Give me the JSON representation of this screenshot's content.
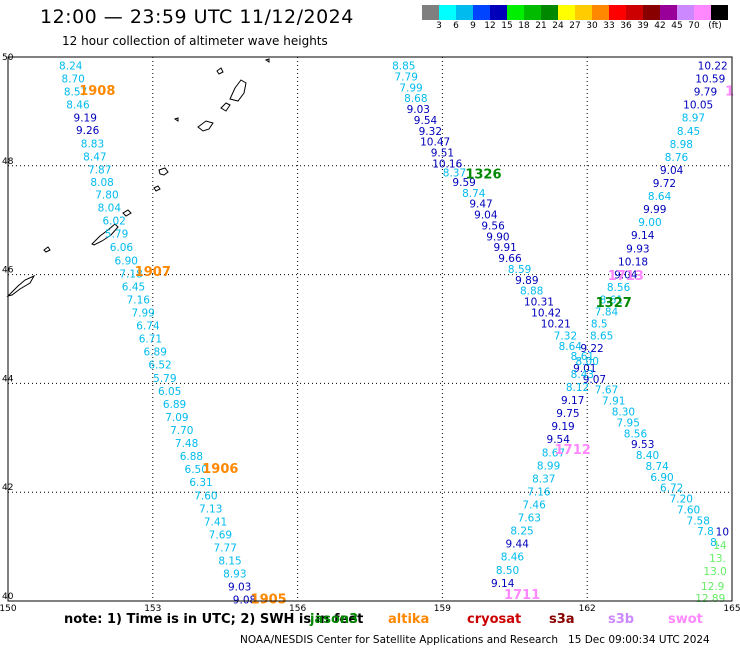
{
  "title": "12:00 — 23:59 UTC 11/12/2024",
  "subtitle": "12 hour collection of altimeter wave heights",
  "legend": {
    "colors": [
      "#7f7f7f",
      "#00ffff",
      "#00bbee",
      "#0044ff",
      "#0000bb",
      "#00ee00",
      "#00bb00",
      "#008800",
      "#ffff00",
      "#ffcc00",
      "#ff8800",
      "#ff0000",
      "#cc0000",
      "#880000",
      "#990099",
      "#cc88ff",
      "#ff88ff",
      "#000000"
    ],
    "ticks": [
      "3",
      "6",
      "9",
      "12",
      "15",
      "18",
      "21",
      "24",
      "27",
      "30",
      "33",
      "36",
      "39",
      "42",
      "45",
      "70",
      "(ft)"
    ]
  },
  "axes": {
    "x_ticks": [
      "150",
      "153",
      "156",
      "159",
      "162",
      "165"
    ],
    "y_ticks": [
      "50",
      "48",
      "46",
      "44",
      "42",
      "40"
    ],
    "xlim": [
      150,
      165
    ],
    "ylim": [
      40,
      50
    ]
  },
  "colors": {
    "cyan_band": "#00bbee",
    "blue_band": "#0000bb",
    "green_band": "#00aa00",
    "orange_band": "#ff8800",
    "pink_band": "#ff88ff",
    "lightgreen_band": "#66ee66"
  },
  "tracks": [
    {
      "name": "track-1908-1905",
      "points": [
        {
          "lon": 151.3,
          "lat": 49.77,
          "v": "8.24",
          "c": "#00bbee"
        },
        {
          "lon": 151.35,
          "lat": 49.53,
          "v": "8.70",
          "c": "#00bbee"
        },
        {
          "lon": 151.4,
          "lat": 49.29,
          "v": "8.57",
          "c": "#00bbee"
        },
        {
          "lon": 151.45,
          "lat": 49.05,
          "v": "8.46",
          "c": "#00bbee"
        },
        {
          "lon": 151.6,
          "lat": 48.81,
          "v": "9.19",
          "c": "#0000bb"
        },
        {
          "lon": 151.65,
          "lat": 48.58,
          "v": "9.26",
          "c": "#0000bb"
        },
        {
          "lon": 151.75,
          "lat": 48.34,
          "v": "8.83",
          "c": "#00bbee"
        },
        {
          "lon": 151.8,
          "lat": 48.1,
          "v": "8.47",
          "c": "#00bbee"
        },
        {
          "lon": 151.9,
          "lat": 47.86,
          "v": "7.87",
          "c": "#00bbee"
        },
        {
          "lon": 151.95,
          "lat": 47.63,
          "v": "8.08",
          "c": "#00bbee"
        },
        {
          "lon": 152.05,
          "lat": 47.4,
          "v": "7.80",
          "c": "#00bbee"
        },
        {
          "lon": 152.1,
          "lat": 47.16,
          "v": "8.04",
          "c": "#00bbee"
        },
        {
          "lon": 152.2,
          "lat": 46.92,
          "v": "6.02",
          "c": "#00bbee"
        },
        {
          "lon": 152.25,
          "lat": 46.68,
          "v": "5.79",
          "c": "#00bbee"
        },
        {
          "lon": 152.35,
          "lat": 46.43,
          "v": "6.06",
          "c": "#00bbee"
        },
        {
          "lon": 152.45,
          "lat": 46.19,
          "v": "6.90",
          "c": "#00bbee"
        },
        {
          "lon": 152.55,
          "lat": 45.95,
          "v": "7.18",
          "c": "#00bbee"
        },
        {
          "lon": 152.6,
          "lat": 45.71,
          "v": "6.45",
          "c": "#00bbee"
        },
        {
          "lon": 152.7,
          "lat": 45.47,
          "v": "7.16",
          "c": "#00bbee"
        },
        {
          "lon": 152.8,
          "lat": 45.23,
          "v": "7.99",
          "c": "#00bbee"
        },
        {
          "lon": 152.9,
          "lat": 44.99,
          "v": "6.74",
          "c": "#00bbee"
        },
        {
          "lon": 152.95,
          "lat": 44.75,
          "v": "6.71",
          "c": "#00bbee"
        },
        {
          "lon": 153.05,
          "lat": 44.51,
          "v": "6.89",
          "c": "#00bbee"
        },
        {
          "lon": 153.15,
          "lat": 44.27,
          "v": "6.52",
          "c": "#00bbee"
        },
        {
          "lon": 153.25,
          "lat": 44.03,
          "v": "5.79",
          "c": "#00bbee"
        },
        {
          "lon": 153.35,
          "lat": 43.79,
          "v": "6.05",
          "c": "#00bbee"
        },
        {
          "lon": 153.45,
          "lat": 43.55,
          "v": "6.89",
          "c": "#00bbee"
        },
        {
          "lon": 153.5,
          "lat": 43.31,
          "v": "7.09",
          "c": "#00bbee"
        },
        {
          "lon": 153.6,
          "lat": 43.07,
          "v": "7.70",
          "c": "#00bbee"
        },
        {
          "lon": 153.7,
          "lat": 42.83,
          "v": "7.48",
          "c": "#00bbee"
        },
        {
          "lon": 153.8,
          "lat": 42.59,
          "v": "6.88",
          "c": "#00bbee"
        },
        {
          "lon": 153.9,
          "lat": 42.35,
          "v": "6.50",
          "c": "#00bbee"
        },
        {
          "lon": 154.0,
          "lat": 42.11,
          "v": "6.31",
          "c": "#00bbee"
        },
        {
          "lon": 154.1,
          "lat": 41.87,
          "v": "7.60",
          "c": "#00bbee"
        },
        {
          "lon": 154.2,
          "lat": 41.63,
          "v": "7.13",
          "c": "#00bbee"
        },
        {
          "lon": 154.3,
          "lat": 41.39,
          "v": "7.41",
          "c": "#00bbee"
        },
        {
          "lon": 154.4,
          "lat": 41.15,
          "v": "7.69",
          "c": "#00bbee"
        },
        {
          "lon": 154.5,
          "lat": 40.91,
          "v": "7.77",
          "c": "#00bbee"
        },
        {
          "lon": 154.6,
          "lat": 40.67,
          "v": "8.15",
          "c": "#00bbee"
        },
        {
          "lon": 154.7,
          "lat": 40.43,
          "v": "8.93",
          "c": "#00bbee"
        },
        {
          "lon": 154.8,
          "lat": 40.19,
          "v": "9.03",
          "c": "#0000bb"
        },
        {
          "lon": 154.9,
          "lat": 39.95,
          "v": "9.08",
          "c": "#0000bb"
        }
      ]
    },
    {
      "name": "track-1326-1711",
      "points": [
        {
          "lon": 158.2,
          "lat": 49.77,
          "v": "8.85",
          "c": "#00bbee"
        },
        {
          "lon": 158.25,
          "lat": 49.57,
          "v": "7.79",
          "c": "#00bbee"
        },
        {
          "lon": 158.35,
          "lat": 49.37,
          "v": "7.99",
          "c": "#00bbee"
        },
        {
          "lon": 158.45,
          "lat": 49.17,
          "v": "8.68",
          "c": "#00bbee"
        },
        {
          "lon": 158.5,
          "lat": 48.97,
          "v": "9.03",
          "c": "#0000bb"
        },
        {
          "lon": 158.65,
          "lat": 48.77,
          "v": "9.54",
          "c": "#0000bb"
        },
        {
          "lon": 158.75,
          "lat": 48.57,
          "v": "9.32",
          "c": "#0000bb"
        },
        {
          "lon": 158.85,
          "lat": 48.37,
          "v": "10.47",
          "c": "#0000bb"
        },
        {
          "lon": 159.0,
          "lat": 48.17,
          "v": "9.51",
          "c": "#0000bb"
        },
        {
          "lon": 159.1,
          "lat": 47.97,
          "v": "10.16",
          "c": "#0000bb"
        },
        {
          "lon": 159.25,
          "lat": 47.8,
          "v": "8.37",
          "c": "#00bbee"
        },
        {
          "lon": 159.45,
          "lat": 47.63,
          "v": "9.59",
          "c": "#0000bb"
        },
        {
          "lon": 159.65,
          "lat": 47.43,
          "v": "8.74",
          "c": "#00bbee"
        },
        {
          "lon": 159.8,
          "lat": 47.23,
          "v": "9.47",
          "c": "#0000bb"
        },
        {
          "lon": 159.9,
          "lat": 47.03,
          "v": "9.04",
          "c": "#0000bb"
        },
        {
          "lon": 160.05,
          "lat": 46.83,
          "v": "9.56",
          "c": "#0000bb"
        },
        {
          "lon": 160.15,
          "lat": 46.63,
          "v": "9.90",
          "c": "#0000bb"
        },
        {
          "lon": 160.3,
          "lat": 46.43,
          "v": "9.91",
          "c": "#0000bb"
        },
        {
          "lon": 160.4,
          "lat": 46.23,
          "v": "9.66",
          "c": "#0000bb"
        },
        {
          "lon": 160.6,
          "lat": 46.03,
          "v": "8.59",
          "c": "#00bbee"
        },
        {
          "lon": 160.75,
          "lat": 45.83,
          "v": "9.89",
          "c": "#0000bb"
        },
        {
          "lon": 160.85,
          "lat": 45.63,
          "v": "8.88",
          "c": "#00bbee"
        },
        {
          "lon": 161.0,
          "lat": 45.43,
          "v": "10.31",
          "c": "#0000bb"
        },
        {
          "lon": 161.15,
          "lat": 45.23,
          "v": "10.42",
          "c": "#0000bb"
        },
        {
          "lon": 161.35,
          "lat": 45.03,
          "v": "10.21",
          "c": "#0000bb"
        },
        {
          "lon": 161.55,
          "lat": 44.81,
          "v": "7.32",
          "c": "#00bbee"
        },
        {
          "lon": 161.65,
          "lat": 44.61,
          "v": "8.64",
          "c": "#00bbee"
        },
        {
          "lon": 161.9,
          "lat": 44.43,
          "v": "8.61",
          "c": "#00bbee"
        },
        {
          "lon": 161.95,
          "lat": 44.21,
          "v": "9.01",
          "c": "#0000bb"
        },
        {
          "lon": 162.15,
          "lat": 44.01,
          "v": "9.07",
          "c": "#0000bb"
        },
        {
          "lon": 162.4,
          "lat": 43.81,
          "v": "7.67",
          "c": "#00bbee"
        },
        {
          "lon": 162.55,
          "lat": 43.61,
          "v": "7.91",
          "c": "#00bbee"
        },
        {
          "lon": 162.75,
          "lat": 43.41,
          "v": "8.30",
          "c": "#00bbee"
        },
        {
          "lon": 162.85,
          "lat": 43.21,
          "v": "7.95",
          "c": "#00bbee"
        },
        {
          "lon": 163.0,
          "lat": 43.01,
          "v": "8.56",
          "c": "#00bbee"
        },
        {
          "lon": 163.15,
          "lat": 42.81,
          "v": "9.53",
          "c": "#0000bb"
        },
        {
          "lon": 163.25,
          "lat": 42.61,
          "v": "8.40",
          "c": "#00bbee"
        },
        {
          "lon": 163.45,
          "lat": 42.41,
          "v": "8.74",
          "c": "#00bbee"
        },
        {
          "lon": 163.55,
          "lat": 42.21,
          "v": "6.90",
          "c": "#00bbee"
        },
        {
          "lon": 163.75,
          "lat": 42.01,
          "v": "6.72",
          "c": "#00bbee"
        },
        {
          "lon": 163.95,
          "lat": 41.81,
          "v": "7.20",
          "c": "#00bbee"
        },
        {
          "lon": 164.1,
          "lat": 41.61,
          "v": "7.60",
          "c": "#00bbee"
        },
        {
          "lon": 164.3,
          "lat": 41.41,
          "v": "7.58",
          "c": "#00bbee"
        },
        {
          "lon": 164.45,
          "lat": 41.21,
          "v": "7.8",
          "c": "#00bbee"
        },
        {
          "lon": 164.65,
          "lat": 41.01,
          "v": "8.",
          "c": "#00bbee"
        }
      ]
    },
    {
      "name": "track-1327-1713",
      "points": [
        {
          "lon": 164.6,
          "lat": 49.77,
          "v": "10.22",
          "c": "#0000bb"
        },
        {
          "lon": 164.55,
          "lat": 49.53,
          "v": "10.59",
          "c": "#0000bb"
        },
        {
          "lon": 164.45,
          "lat": 49.29,
          "v": "9.79",
          "c": "#0000bb"
        },
        {
          "lon": 164.3,
          "lat": 49.05,
          "v": "10.05",
          "c": "#0000bb"
        },
        {
          "lon": 164.2,
          "lat": 48.81,
          "v": "8.97",
          "c": "#00bbee"
        },
        {
          "lon": 164.1,
          "lat": 48.57,
          "v": "8.45",
          "c": "#00bbee"
        },
        {
          "lon": 163.95,
          "lat": 48.33,
          "v": "8.98",
          "c": "#00bbee"
        },
        {
          "lon": 163.85,
          "lat": 48.09,
          "v": "8.76",
          "c": "#00bbee"
        },
        {
          "lon": 163.75,
          "lat": 47.85,
          "v": "9.04",
          "c": "#0000bb"
        },
        {
          "lon": 163.6,
          "lat": 47.61,
          "v": "9.72",
          "c": "#0000bb"
        },
        {
          "lon": 163.5,
          "lat": 47.37,
          "v": "8.64",
          "c": "#00bbee"
        },
        {
          "lon": 163.4,
          "lat": 47.13,
          "v": "9.99",
          "c": "#0000bb"
        },
        {
          "lon": 163.3,
          "lat": 46.89,
          "v": "9.00",
          "c": "#00bbee"
        },
        {
          "lon": 163.15,
          "lat": 46.65,
          "v": "9.14",
          "c": "#0000bb"
        },
        {
          "lon": 163.05,
          "lat": 46.41,
          "v": "9.93",
          "c": "#0000bb"
        },
        {
          "lon": 162.95,
          "lat": 46.17,
          "v": "10.18",
          "c": "#0000bb"
        },
        {
          "lon": 162.8,
          "lat": 45.93,
          "v": "9.04",
          "c": "#0000bb"
        },
        {
          "lon": 162.65,
          "lat": 45.7,
          "v": "8.56",
          "c": "#00bbee"
        },
        {
          "lon": 162.5,
          "lat": 45.47,
          "v": "8.61",
          "c": "#00bbee"
        },
        {
          "lon": 162.4,
          "lat": 45.25,
          "v": "7.84",
          "c": "#00bbee"
        },
        {
          "lon": 162.25,
          "lat": 45.03,
          "v": "8.5",
          "c": "#00bbee"
        },
        {
          "lon": 162.3,
          "lat": 44.81,
          "v": "8.65",
          "c": "#00bbee"
        },
        {
          "lon": 162.1,
          "lat": 44.58,
          "v": "9.22",
          "c": "#0000bb"
        },
        {
          "lon": 162.0,
          "lat": 44.34,
          "v": "8.00",
          "c": "#00bbee"
        },
        {
          "lon": 161.9,
          "lat": 44.1,
          "v": "8.43",
          "c": "#00bbee"
        },
        {
          "lon": 161.8,
          "lat": 43.86,
          "v": "8.12",
          "c": "#00bbee"
        },
        {
          "lon": 161.7,
          "lat": 43.62,
          "v": "9.17",
          "c": "#0000bb"
        },
        {
          "lon": 161.6,
          "lat": 43.38,
          "v": "9.75",
          "c": "#0000bb"
        },
        {
          "lon": 161.5,
          "lat": 43.14,
          "v": "9.19",
          "c": "#0000bb"
        },
        {
          "lon": 161.4,
          "lat": 42.9,
          "v": "9.54",
          "c": "#0000bb"
        },
        {
          "lon": 161.3,
          "lat": 42.66,
          "v": "8.67",
          "c": "#00bbee"
        },
        {
          "lon": 161.2,
          "lat": 42.42,
          "v": "8.99",
          "c": "#00bbee"
        },
        {
          "lon": 161.1,
          "lat": 42.18,
          "v": "8.37",
          "c": "#00bbee"
        },
        {
          "lon": 161.0,
          "lat": 41.94,
          "v": "7.16",
          "c": "#00bbee"
        },
        {
          "lon": 160.9,
          "lat": 41.7,
          "v": "7.46",
          "c": "#00bbee"
        },
        {
          "lon": 160.8,
          "lat": 41.46,
          "v": "7.63",
          "c": "#00bbee"
        },
        {
          "lon": 160.65,
          "lat": 41.22,
          "v": "8.25",
          "c": "#00bbee"
        },
        {
          "lon": 160.55,
          "lat": 40.98,
          "v": "9.44",
          "c": "#0000bb"
        },
        {
          "lon": 160.45,
          "lat": 40.74,
          "v": "8.46",
          "c": "#00bbee"
        },
        {
          "lon": 160.35,
          "lat": 40.5,
          "v": "8.50",
          "c": "#00bbee"
        },
        {
          "lon": 160.25,
          "lat": 40.26,
          "v": "9.14",
          "c": "#0000bb"
        }
      ]
    },
    {
      "name": "track-east-green",
      "points": [
        {
          "lon": 164.8,
          "lat": 41.2,
          "v": "10",
          "c": "#0000bb"
        },
        {
          "lon": 164.75,
          "lat": 40.96,
          "v": "14",
          "c": "#66ee66"
        },
        {
          "lon": 164.7,
          "lat": 40.72,
          "v": "13.",
          "c": "#66ee66"
        },
        {
          "lon": 164.65,
          "lat": 40.48,
          "v": "13.0",
          "c": "#66ee66"
        },
        {
          "lon": 164.6,
          "lat": 40.2,
          "v": "12.9",
          "c": "#66ee66"
        },
        {
          "lon": 164.55,
          "lat": 39.98,
          "v": "12.89",
          "c": "#66ee66"
        }
      ]
    }
  ],
  "pass_labels": [
    {
      "text": "1908",
      "lon": 151.85,
      "lat": 49.3,
      "c": "#ff8800"
    },
    {
      "text": "1907",
      "lon": 153.0,
      "lat": 45.97,
      "c": "#ff8800"
    },
    {
      "text": "1906",
      "lon": 154.4,
      "lat": 42.35,
      "c": "#ff8800"
    },
    {
      "text": "1905",
      "lon": 155.4,
      "lat": 39.95,
      "c": "#ff8800"
    },
    {
      "text": "1326",
      "lon": 159.85,
      "lat": 47.77,
      "c": "#008800"
    },
    {
      "text": "1327",
      "lon": 162.55,
      "lat": 45.4,
      "c": "#008800"
    },
    {
      "text": "1713",
      "lon": 162.8,
      "lat": 45.9,
      "c": "#ff88ff"
    },
    {
      "text": "1712",
      "lon": 161.7,
      "lat": 42.7,
      "c": "#ff88ff"
    },
    {
      "text": "1711",
      "lon": 160.65,
      "lat": 40.04,
      "c": "#ff88ff"
    },
    {
      "text": "1",
      "lon": 164.95,
      "lat": 49.29,
      "c": "#ff88ff"
    }
  ],
  "note": "note: 1) Time is in UTC; 2) SWH is in feet",
  "satellites": [
    {
      "name": "jason3",
      "c": "#008800"
    },
    {
      "name": "altika",
      "c": "#ff8800"
    },
    {
      "name": "cryosat",
      "c": "#cc0000"
    },
    {
      "name": "s3a",
      "c": "#880000"
    },
    {
      "name": "s3b",
      "c": "#cc88ff"
    },
    {
      "name": "swot",
      "c": "#ff88ff"
    }
  ],
  "credit": "NOAA/NESDIS Center for Satellite Applications and Research   15 Dec 09:00:34 UTC 2024"
}
